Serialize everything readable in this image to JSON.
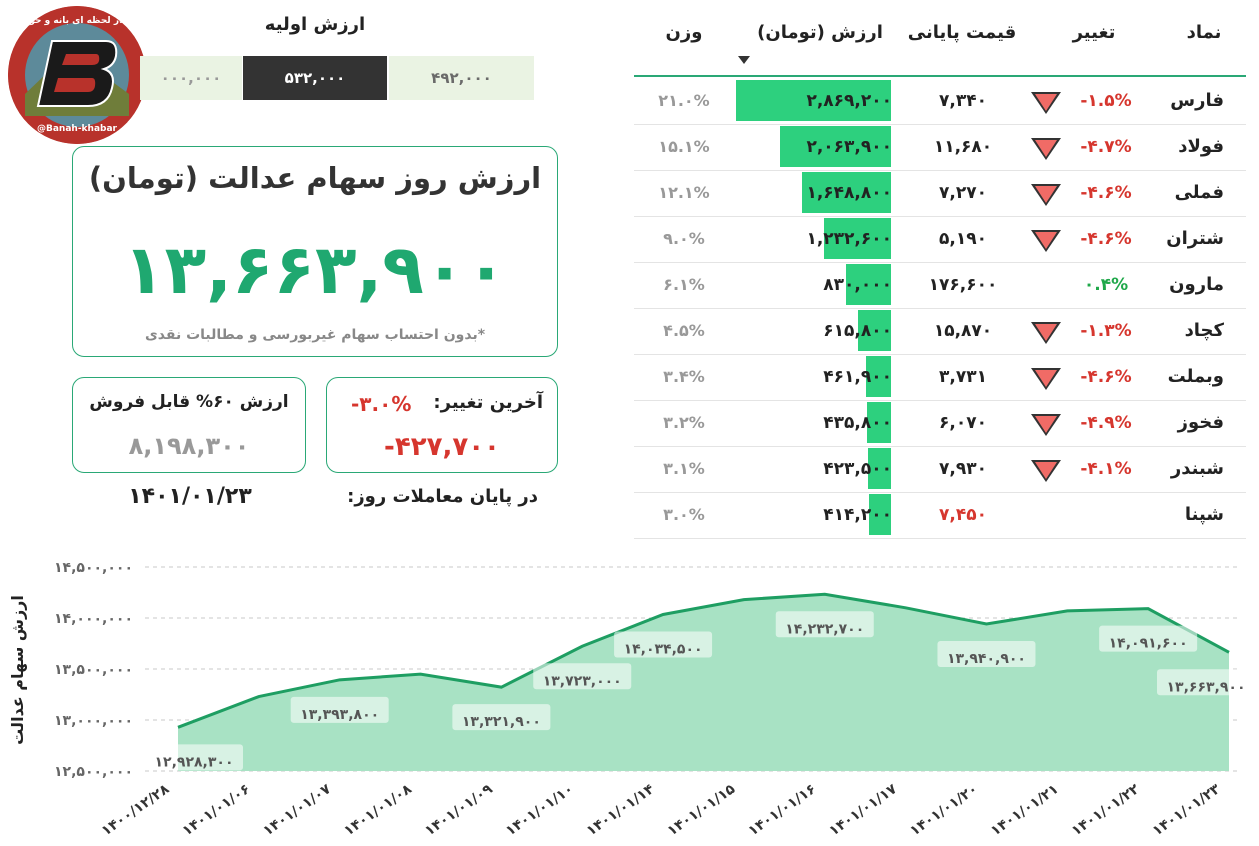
{
  "logo": {
    "top_text": "اخبار لحظه ای بانه و حومه",
    "bottom_text": "@Banah-khabar"
  },
  "initial_value": {
    "title": "ارزش اولیه",
    "left": "۰۰۰,۰۰۰",
    "middle": "۵۳۲,۰۰۰",
    "right": "۴۹۲,۰۰۰"
  },
  "main_card": {
    "title": "ارزش روز سهام عدالت (تومان)",
    "value": "۱۳,۶۶۳,۹۰۰",
    "note": "*بدون احتساب سهام غیربورسی و مطالبات نقدی"
  },
  "sellable_card": {
    "title": "ارزش ۶۰% قابل فروش",
    "value": "۸,۱۹۸,۳۰۰"
  },
  "change_card": {
    "label": "آخرین تغییر:",
    "percent": "-۳.۰%",
    "value": "-۴۲۷,۷۰۰"
  },
  "date": {
    "label": "در پایان معاملات روز:",
    "value": "۱۴۰۱/۰۱/۲۳"
  },
  "table": {
    "headers": {
      "symbol": "نماد",
      "change": "تغییر",
      "price": "قیمت پایانی",
      "value": "ارزش (تومان)",
      "weight": "وزن"
    },
    "colors": {
      "negative": "#d6362e",
      "positive": "#1fa84a",
      "bar": "#2dd07e"
    },
    "rows": [
      {
        "symbol": "فارس",
        "change": "-۱.۵%",
        "dir": "down",
        "price": "۷,۳۴۰",
        "price_color": "#222222",
        "value": "۲,۸۶۹,۲۰۰",
        "value_num": 2869200,
        "weight": "۲۱.۰%"
      },
      {
        "symbol": "فولاد",
        "change": "-۴.۷%",
        "dir": "down",
        "price": "۱۱,۶۸۰",
        "price_color": "#222222",
        "value": "۲,۰۶۳,۹۰۰",
        "value_num": 2063900,
        "weight": "۱۵.۱%"
      },
      {
        "symbol": "فملی",
        "change": "-۴.۶%",
        "dir": "down",
        "price": "۷,۲۷۰",
        "price_color": "#222222",
        "value": "۱,۶۴۸,۸۰۰",
        "value_num": 1648800,
        "weight": "۱۲.۱%"
      },
      {
        "symbol": "شتران",
        "change": "-۴.۶%",
        "dir": "down",
        "price": "۵,۱۹۰",
        "price_color": "#222222",
        "value": "۱,۲۳۲,۶۰۰",
        "value_num": 1232600,
        "weight": "۹.۰%"
      },
      {
        "symbol": "مارون",
        "change": "۰.۴%",
        "dir": "up",
        "price": "۱۷۶,۶۰۰",
        "price_color": "#222222",
        "value": "۸۳۰,۰۰۰",
        "value_num": 830000,
        "weight": "۶.۱%"
      },
      {
        "symbol": "کچاد",
        "change": "-۱.۳%",
        "dir": "down",
        "price": "۱۵,۸۷۰",
        "price_color": "#222222",
        "value": "۶۱۵,۸۰۰",
        "value_num": 615800,
        "weight": "۴.۵%"
      },
      {
        "symbol": "وبملت",
        "change": "-۴.۶%",
        "dir": "down",
        "price": "۳,۷۳۱",
        "price_color": "#222222",
        "value": "۴۶۱,۹۰۰",
        "value_num": 461900,
        "weight": "۳.۴%"
      },
      {
        "symbol": "فخوز",
        "change": "-۴.۹%",
        "dir": "down",
        "price": "۶,۰۷۰",
        "price_color": "#222222",
        "value": "۴۳۵,۸۰۰",
        "value_num": 435800,
        "weight": "۳.۲%"
      },
      {
        "symbol": "شبندر",
        "change": "-۴.۱%",
        "dir": "down",
        "price": "۷,۹۳۰",
        "price_color": "#222222",
        "value": "۴۲۳,۵۰۰",
        "value_num": 423500,
        "weight": "۳.۱%"
      },
      {
        "symbol": "شپنا",
        "change": "",
        "dir": "none",
        "price": "۷,۴۵۰",
        "price_color": "#d6362e",
        "value": "۴۱۴,۲۰۰",
        "value_num": 414200,
        "weight": "۳.۰%"
      }
    ]
  },
  "chart_data": {
    "type": "area",
    "ylabel": "ارزش سهام عدالت",
    "ylim": [
      12500000,
      14500000
    ],
    "ytick_values": [
      12500000,
      13000000,
      13500000,
      14000000,
      14500000
    ],
    "ytick_labels": [
      "۱۲,۵۰۰,۰۰۰",
      "۱۳,۰۰۰,۰۰۰",
      "۱۳,۵۰۰,۰۰۰",
      "۱۴,۰۰۰,۰۰۰",
      "۱۴,۵۰۰,۰۰۰"
    ],
    "x": [
      "۱۴۰۰/۱۲/۲۸",
      "۱۴۰۱/۰۱/۰۶",
      "۱۴۰۱/۰۱/۰۷",
      "۱۴۰۱/۰۱/۰۸",
      "۱۴۰۱/۰۱/۰۹",
      "۱۴۰۱/۰۱/۱۰",
      "۱۴۰۱/۰۱/۱۴",
      "۱۴۰۱/۰۱/۱۵",
      "۱۴۰۱/۰۱/۱۶",
      "۱۴۰۱/۰۱/۱۷",
      "۱۴۰۱/۰۱/۲۰",
      "۱۴۰۱/۰۱/۲۱",
      "۱۴۰۱/۰۱/۲۲",
      "۱۴۰۱/۰۱/۲۳"
    ],
    "values": [
      12928300,
      13230000,
      13393800,
      13450000,
      13321900,
      13723000,
      14034500,
      14180000,
      14232700,
      14100000,
      13940900,
      14070000,
      14091600,
      13663900
    ],
    "data_labels": [
      {
        "index": 0,
        "text": "۱۲,۹۲۸,۳۰۰"
      },
      {
        "index": 2,
        "text": "۱۳,۳۹۳,۸۰۰"
      },
      {
        "index": 4,
        "text": "۱۳,۳۲۱,۹۰۰"
      },
      {
        "index": 5,
        "text": "۱۳,۷۲۳,۰۰۰"
      },
      {
        "index": 6,
        "text": "۱۴,۰۳۴,۵۰۰"
      },
      {
        "index": 8,
        "text": "۱۴,۲۳۲,۷۰۰"
      },
      {
        "index": 10,
        "text": "۱۳,۹۴۰,۹۰۰"
      },
      {
        "index": 12,
        "text": "۱۴,۰۹۱,۶۰۰"
      },
      {
        "index": 13,
        "text": "۱۳,۶۶۳,۹۰۰"
      }
    ],
    "line_color": "#1e9e62",
    "fill_color": "#a8e2c4",
    "grid": true
  }
}
